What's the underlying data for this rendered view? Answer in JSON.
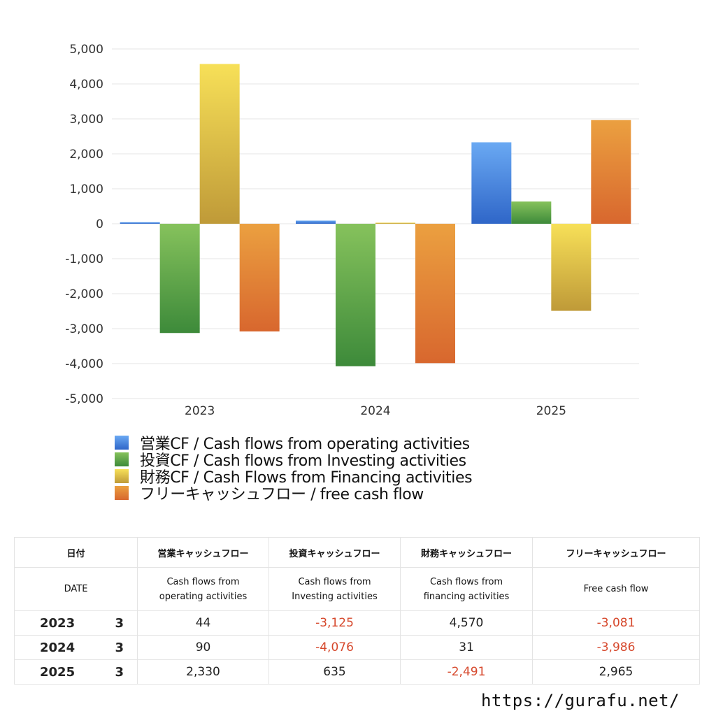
{
  "chart_data": {
    "type": "bar",
    "categories": [
      "2023",
      "2024",
      "2025"
    ],
    "ylim": [
      -5000,
      5000
    ],
    "yticks": [
      "5,000",
      "4,000",
      "3,000",
      "2,000",
      "1,000",
      "0",
      "-1,000",
      "-2,000",
      "-3,000",
      "-4,000",
      "-5,000"
    ],
    "ytick_values": [
      5000,
      4000,
      3000,
      2000,
      1000,
      0,
      -1000,
      -2000,
      -3000,
      -4000,
      -5000
    ],
    "grid": true,
    "legend_position": "bottom",
    "series": [
      {
        "name": "営業CF / Cash flows from operating activities",
        "values": [
          44,
          90,
          2330
        ],
        "color_top": "#6aa9f3",
        "color_bottom": "#2f66c8"
      },
      {
        "name": "投資CF / Cash flows from Investing activities",
        "values": [
          -3125,
          -4076,
          635
        ],
        "color_top": "#86c25c",
        "color_bottom": "#3d8a3a"
      },
      {
        "name": "財務CF / Cash Flows from Financing activities",
        "values": [
          4570,
          31,
          -2491
        ],
        "color_top": "#f7e058",
        "color_bottom": "#bf9a38"
      },
      {
        "name": "フリーキャッシュフロー / free cash flow",
        "values": [
          -3081,
          -3986,
          2965
        ],
        "color_top": "#eba040",
        "color_bottom": "#d8672e"
      }
    ]
  },
  "table": {
    "header_jp": [
      "日付",
      "営業キャッシュフロー",
      "投資キャッシュフロー",
      "財務キャッシュフロー",
      "フリーキャッシュフロー"
    ],
    "header_en_date": "DATE",
    "header_en": [
      [
        "Cash flows from",
        "operating activities"
      ],
      [
        "Cash flows from",
        "Investing activities"
      ],
      [
        "Cash flows from",
        "financing activities"
      ],
      [
        "Free cash flow",
        ""
      ]
    ],
    "rows": [
      {
        "year": "2023",
        "month": "3",
        "operating": "44",
        "investing": "-3,125",
        "financing": "4,570",
        "free": "-3,081"
      },
      {
        "year": "2024",
        "month": "3",
        "operating": "90",
        "investing": "-4,076",
        "financing": "31",
        "free": "-3,986"
      },
      {
        "year": "2025",
        "month": "3",
        "operating": "2,330",
        "investing": "635",
        "financing": "-2,491",
        "free": "2,965"
      }
    ],
    "negative_color": "#d6482c"
  },
  "footer": {
    "url": "https://gurafu.net/"
  }
}
